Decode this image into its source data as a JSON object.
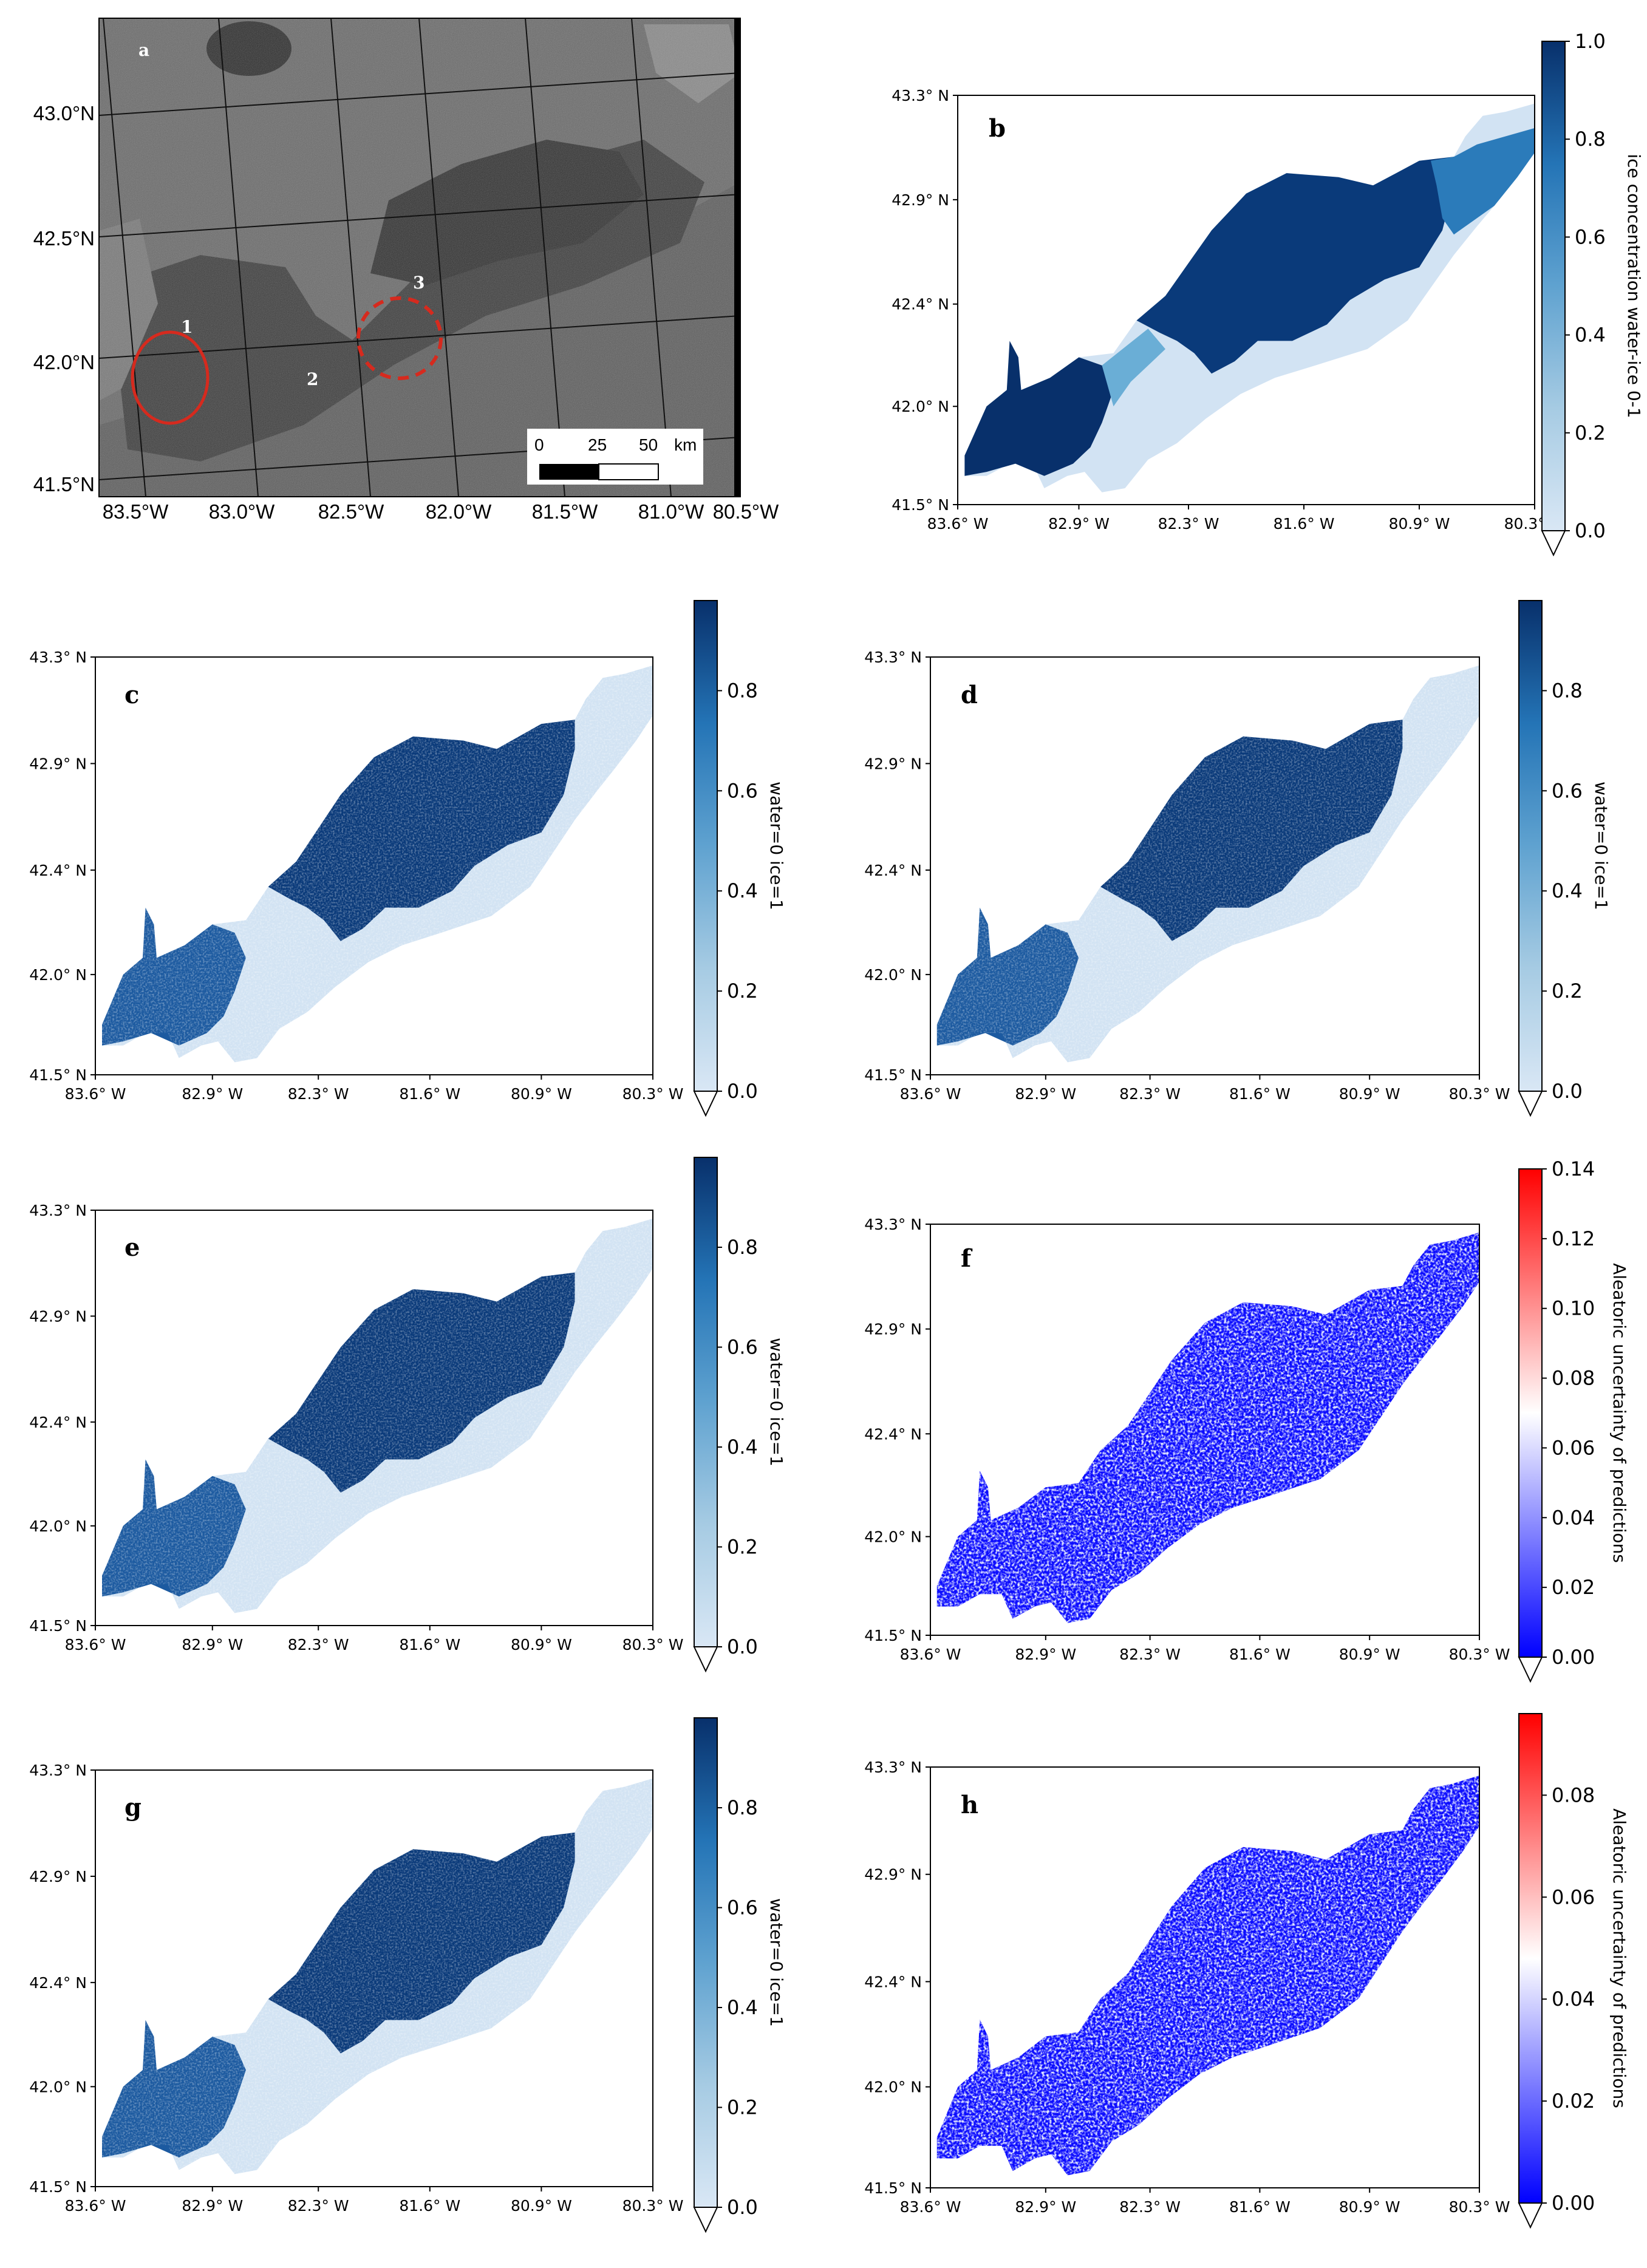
{
  "chart_data": [
    {
      "id": "a",
      "type": "image",
      "title": "a",
      "x_ticks": [
        "83.5°W",
        "83.0°W",
        "82.5°W",
        "82.0°W",
        "81.5°W",
        "81.0°W",
        "80.5°W"
      ],
      "y_ticks": [
        "43.0°N",
        "42.5°N",
        "42.0°N",
        "41.5°N"
      ],
      "site_labels": [
        "1",
        "2",
        "3"
      ],
      "scale_bar": {
        "ticks": [
          "0",
          "25",
          "50"
        ],
        "unit": "km"
      }
    },
    {
      "id": "b",
      "type": "heatmap",
      "title": "b",
      "x_ticks": [
        "83.6° W",
        "82.9° W",
        "82.3° W",
        "81.6° W",
        "80.9° W",
        "80.3° W"
      ],
      "y_ticks": [
        "43.3° N",
        "42.9° N",
        "42.4° N",
        "42.0° N",
        "41.5° N"
      ],
      "xlim": [
        -83.6,
        -80.3
      ],
      "ylim": [
        41.5,
        43.3
      ],
      "colorbar": {
        "label": "ice concentration water-ice 0-1",
        "ticks": [
          "0.0",
          "0.2",
          "0.4",
          "0.6",
          "0.8",
          "1.0"
        ],
        "range": [
          0.0,
          1.0
        ],
        "cmap": "Blues"
      }
    },
    {
      "id": "c",
      "type": "heatmap",
      "title": "c",
      "x_ticks": [
        "83.6° W",
        "82.9° W",
        "82.3° W",
        "81.6° W",
        "80.9° W",
        "80.3° W"
      ],
      "y_ticks": [
        "43.3° N",
        "42.9° N",
        "42.4° N",
        "42.0° N",
        "41.5° N"
      ],
      "colorbar": {
        "label": "water=0 ice=1",
        "ticks": [
          "0.0",
          "0.2",
          "0.4",
          "0.6",
          "0.8"
        ],
        "range": [
          0.0,
          0.98
        ],
        "cmap": "Blues"
      }
    },
    {
      "id": "d",
      "type": "heatmap",
      "title": "d",
      "x_ticks": [
        "83.6° W",
        "82.9° W",
        "82.3° W",
        "81.6° W",
        "80.9° W",
        "80.3° W"
      ],
      "y_ticks": [
        "43.3° N",
        "42.9° N",
        "42.4° N",
        "42.0° N",
        "41.5° N"
      ],
      "colorbar": {
        "label": "water=0 ice=1",
        "ticks": [
          "0.0",
          "0.2",
          "0.4",
          "0.6",
          "0.8"
        ],
        "range": [
          0.0,
          0.98
        ],
        "cmap": "Blues"
      }
    },
    {
      "id": "e",
      "type": "heatmap",
      "title": "e",
      "x_ticks": [
        "83.6° W",
        "82.9° W",
        "82.3° W",
        "81.6° W",
        "80.9° W",
        "80.3° W"
      ],
      "y_ticks": [
        "43.3° N",
        "42.9° N",
        "42.4° N",
        "42.0° N",
        "41.5° N"
      ],
      "colorbar": {
        "label": "water=0 ice=1",
        "ticks": [
          "0.0",
          "0.2",
          "0.4",
          "0.6",
          "0.8"
        ],
        "range": [
          0.0,
          0.98
        ],
        "cmap": "Blues"
      }
    },
    {
      "id": "f",
      "type": "heatmap",
      "title": "f",
      "x_ticks": [
        "83.6° W",
        "82.9° W",
        "82.3° W",
        "81.6° W",
        "80.9° W",
        "80.3° W"
      ],
      "y_ticks": [
        "43.3° N",
        "42.9° N",
        "42.4° N",
        "42.0° N",
        "41.5° N"
      ],
      "colorbar": {
        "label": "Aleatoric uncertainty of predictions",
        "ticks": [
          "0.00",
          "0.02",
          "0.04",
          "0.06",
          "0.08",
          "0.10",
          "0.12",
          "0.14"
        ],
        "range": [
          0.0,
          0.14
        ],
        "cmap": "bwr"
      }
    },
    {
      "id": "g",
      "type": "heatmap",
      "title": "g",
      "x_ticks": [
        "83.6° W",
        "82.9° W",
        "82.3° W",
        "81.6° W",
        "80.9° W",
        "80.3° W"
      ],
      "y_ticks": [
        "43.3° N",
        "42.9° N",
        "42.4° N",
        "42.0° N",
        "41.5° N"
      ],
      "colorbar": {
        "label": "water=0 ice=1",
        "ticks": [
          "0.0",
          "0.2",
          "0.4",
          "0.6",
          "0.8"
        ],
        "range": [
          0.0,
          0.98
        ],
        "cmap": "Blues"
      }
    },
    {
      "id": "h",
      "type": "heatmap",
      "title": "h",
      "x_ticks": [
        "83.6° W",
        "82.9° W",
        "82.3° W",
        "81.6° W",
        "80.9° W",
        "80.3° W"
      ],
      "y_ticks": [
        "43.3° N",
        "42.9° N",
        "42.4° N",
        "42.0° N",
        "41.5° N"
      ],
      "colorbar": {
        "label": "Aleatoric uncertainty of predictions",
        "ticks": [
          "0.00",
          "0.02",
          "0.04",
          "0.06",
          "0.08"
        ],
        "range": [
          0.0,
          0.096
        ],
        "cmap": "bwr"
      }
    }
  ],
  "colors": {
    "blues_dark": "#08306b",
    "blues_mid": "#4292c6",
    "blues_light": "#d4e4f4",
    "bwr_blue": "#0000ff",
    "bwr_red": "#ff0000",
    "circle_red": "#d62a1e"
  }
}
